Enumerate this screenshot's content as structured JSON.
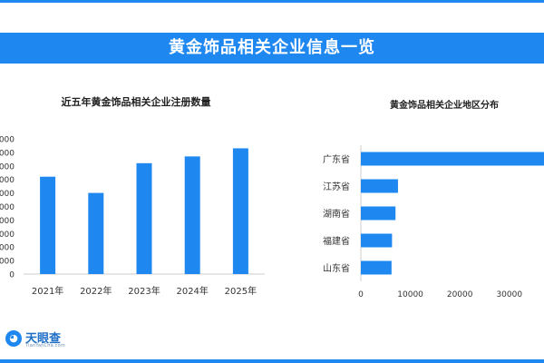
{
  "page_title": "黄金饰品相关企业信息一览",
  "logo": {
    "name": "天眼查",
    "url_text": "TianYanCha.com"
  },
  "colors": {
    "accent": "#1e88f0",
    "bar": "#1e88f0",
    "axis": "#cccccc",
    "text": "#333333"
  },
  "chart_data": [
    {
      "type": "bar",
      "title": "近五年黄金饰品相关企业注册数量",
      "categories": [
        "2021年",
        "2022年",
        "2023年",
        "2024年",
        "2025年"
      ],
      "values": [
        7200,
        6000,
        8200,
        8700,
        9300
      ],
      "ylim": [
        0,
        10000
      ],
      "ytick_labels": [
        "0000",
        "0000",
        "0000",
        "0000",
        "0000",
        "0000",
        "0000",
        "0000",
        "0000",
        "0000",
        "0"
      ],
      "grid": false
    },
    {
      "type": "bar",
      "orientation": "horizontal",
      "title": "黄金饰品相关企业地区分布",
      "categories": [
        "广东省",
        "江苏省",
        "湖南省",
        "福建省",
        "山东省"
      ],
      "values": [
        38000,
        7500,
        7000,
        6300,
        6200
      ],
      "xlim": [
        0,
        37000
      ],
      "xticks": [
        0,
        10000,
        20000,
        30000
      ],
      "xtick_labels": [
        "0",
        "10000",
        "20000",
        "30000"
      ],
      "grid": false
    }
  ]
}
